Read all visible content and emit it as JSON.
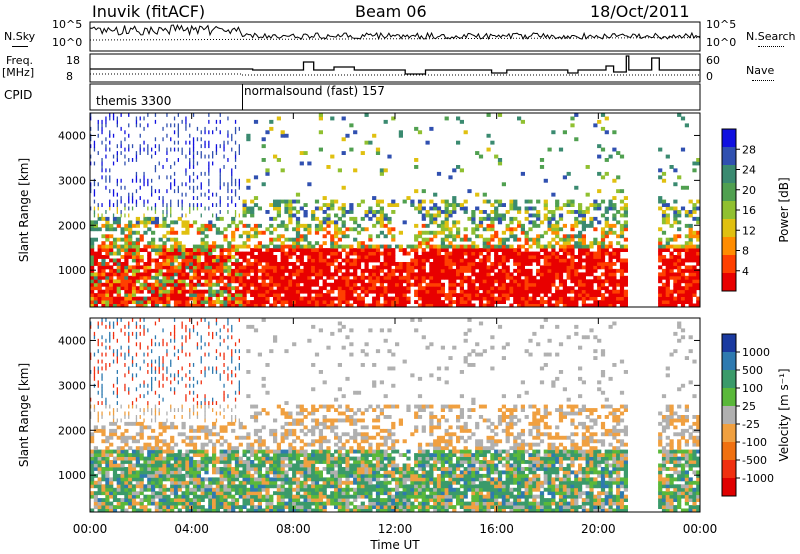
{
  "header": {
    "station": "Inuvik (fitACF)",
    "beam": "Beam 06",
    "date": "18/Oct/2011"
  },
  "summary_panel": {
    "left_top_label": "N.Sky",
    "left_mid_label_1": "Freq.",
    "left_mid_label_2": "[MHz]",
    "left_bottom_label": "CPID",
    "right_top_label": "N.Search",
    "right_bottom_label": "Nave",
    "nsky_ticks": [
      "10^5",
      "10^0"
    ],
    "nsearch_ticks": [
      "10^5",
      "10^0"
    ],
    "freq_ticks": [
      "18",
      "8"
    ],
    "nave_ticks": [
      "60",
      "0"
    ]
  },
  "cpid_segments": [
    {
      "label": "themis 3300",
      "start_hour": 0,
      "end_hour": 6
    },
    {
      "label": "normalsound (fast) 157",
      "start_hour": 6,
      "end_hour": 24
    }
  ],
  "colors": {
    "power": [
      "#1010e0",
      "#3050b0",
      "#3a8a70",
      "#50a050",
      "#90c030",
      "#e0c010",
      "#ff8c00",
      "#ff4000",
      "#e80000"
    ],
    "velocity": [
      "#1a3aa0",
      "#2e7ab0",
      "#3a9a6a",
      "#5ab83a",
      "#b0b0b0",
      "#f0a040",
      "#f07010",
      "#f03010",
      "#e00000"
    ]
  },
  "chart_data": [
    {
      "type": "heatmap",
      "panel": "power",
      "xlabel": "",
      "ylabel": "Slant Range [km]",
      "x_ticks": [
        "00:00",
        "04:00",
        "08:00",
        "12:00",
        "16:00",
        "20:00",
        "00:00"
      ],
      "y_ticks": [
        1000,
        2000,
        3000,
        4000
      ],
      "xlim_hours": [
        0,
        24
      ],
      "ylim": [
        180,
        4500
      ],
      "colorbar_label": "Power [dB]",
      "colorbar_ticks": [
        4,
        8,
        12,
        16,
        20,
        24,
        28
      ],
      "colorbar_range": [
        0,
        32
      ]
    },
    {
      "type": "heatmap",
      "panel": "velocity",
      "xlabel": "Time UT",
      "ylabel": "Slant Range [km]",
      "x_ticks": [
        "00:00",
        "04:00",
        "08:00",
        "12:00",
        "16:00",
        "20:00",
        "00:00"
      ],
      "y_ticks": [
        1000,
        2000,
        3000,
        4000
      ],
      "xlim_hours": [
        0,
        24
      ],
      "ylim": [
        180,
        4500
      ],
      "colorbar_label": "Velocity [m s⁻¹]",
      "colorbar_ticks": [
        "1000",
        "500",
        "100",
        "25",
        "-25",
        "-100",
        "-500",
        "-1000"
      ]
    }
  ]
}
